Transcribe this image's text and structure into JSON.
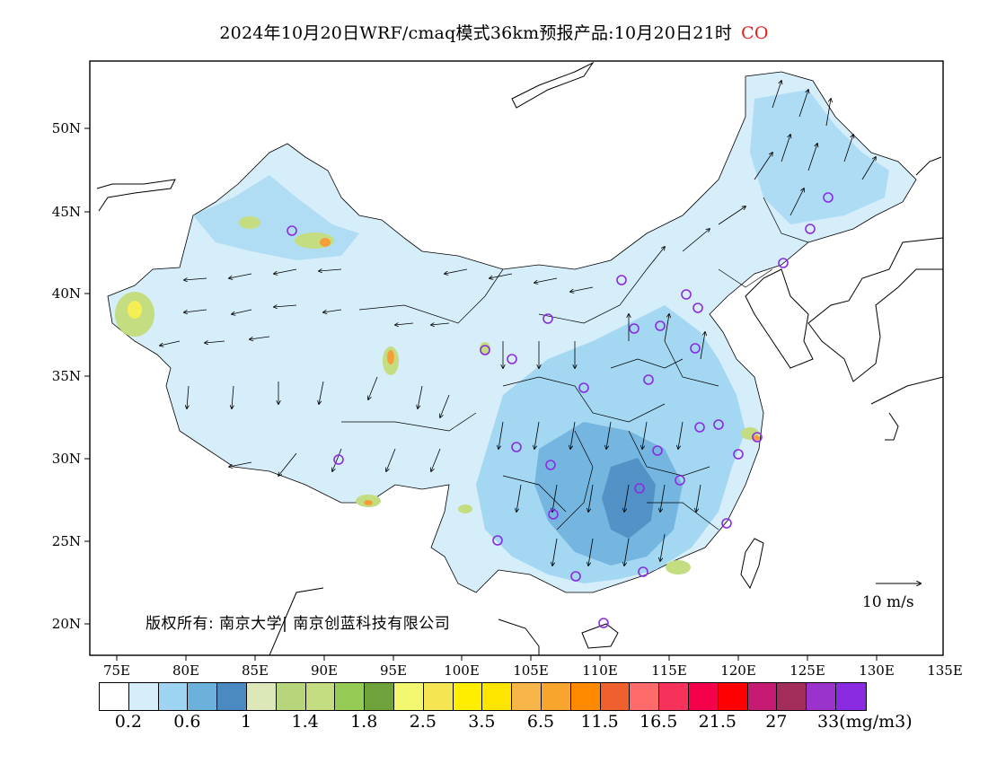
{
  "title": {
    "main": "2024年10月20日WRF/cmaq模式36km预报产品:10月20日21时",
    "species": "CO"
  },
  "map": {
    "lat_ticks": [
      "50N",
      "45N",
      "40N",
      "35N",
      "30N",
      "25N",
      "20N"
    ],
    "lon_ticks": [
      "75E",
      "80E",
      "85E",
      "90E",
      "95E",
      "100E",
      "105E",
      "110E",
      "115E",
      "120E",
      "125E",
      "130E",
      "135E"
    ],
    "colors": {
      "land_low": "#d6eefa",
      "land_mid": "#9dd4f1",
      "land_mid2": "#6cb0dc",
      "land_high": "#4a8ac0",
      "hot_green": "#c3dd80",
      "hot_yellow": "#f5ef55",
      "hot_orange": "#f79d3a",
      "station": "#8a2be2"
    }
  },
  "copyright": "版权所有: 南京大学| 南京创蓝科技有限公司",
  "wind_scale": "10 m/s",
  "colorbar": {
    "colors": [
      "#ffffff",
      "#d6eefa",
      "#9dd4f1",
      "#6cb0dc",
      "#4a8ac0",
      "#dde8b8",
      "#b7d57a",
      "#c3dd80",
      "#96cc55",
      "#6da33a",
      "#f4f871",
      "#f5e553",
      "#ffee00",
      "#ffe600",
      "#f7b54a",
      "#f7a52c",
      "#ff8a00",
      "#f0602e",
      "#ff6a6a",
      "#f7325a",
      "#f5004a",
      "#ff0000",
      "#c61a73",
      "#a22c5a",
      "#9933cc",
      "#8a2be2"
    ],
    "labels": [
      "0.2",
      "0.6",
      "1",
      "1.4",
      "1.8",
      "2.5",
      "3.5",
      "6.5",
      "11.5",
      "16.5",
      "21.5",
      "27",
      "33(mg/m3)"
    ]
  }
}
